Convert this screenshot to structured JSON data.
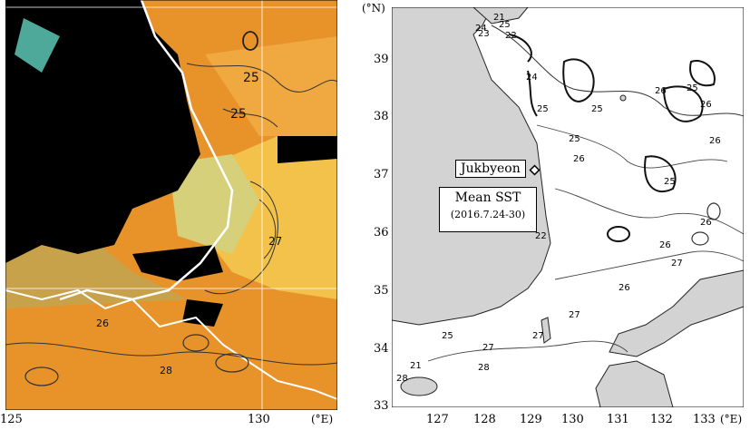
{
  "left_panel": {
    "x_ticks": [
      "125",
      "130"
    ],
    "x_unit": "(°E)",
    "contour_labels": [
      "25",
      "25",
      "26",
      "27",
      "28"
    ]
  },
  "right_panel": {
    "y_unit": "(°N)",
    "y_ticks": [
      "39",
      "38",
      "37",
      "36",
      "35",
      "34",
      "33"
    ],
    "x_ticks": [
      "127",
      "128",
      "129",
      "130",
      "131",
      "132",
      "133"
    ],
    "x_unit": "(°E)",
    "station_label": "Jukbyeon",
    "title_line1": "Mean SST",
    "title_line2": "(2016.7.24-30)",
    "contour_labels": [
      "25",
      "24",
      "23",
      "22",
      "21",
      "24",
      "25",
      "26",
      "25",
      "25",
      "26",
      "25",
      "25",
      "26",
      "26",
      "26",
      "26",
      "27",
      "27",
      "26",
      "27",
      "28",
      "21",
      "28",
      "25",
      "27",
      "22"
    ]
  },
  "colors": {
    "land": "#d3d3d3",
    "sea_right": "#ffffff",
    "sst_warm": "#e8922a",
    "sst_mid": "#f2b13a",
    "cloud": "#000000"
  }
}
